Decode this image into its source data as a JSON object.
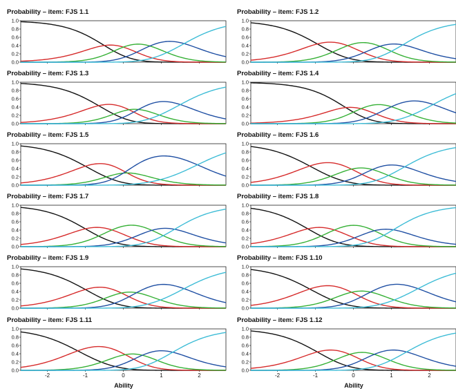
{
  "chart_data": {
    "type": "line",
    "xlabel": "Ability",
    "xlim": [
      -2.7,
      2.7
    ],
    "ylim": [
      0,
      1
    ],
    "xticks": [
      "-2",
      "-1",
      "0",
      "1",
      "2"
    ],
    "yticks": [
      "0.0",
      "0.2",
      "0.4",
      "0.6",
      "0.8",
      "1.0"
    ],
    "category_colors": [
      "#111111",
      "#d62b2b",
      "#35b035",
      "#1f4fa3",
      "#3dbcd6"
    ],
    "panels": [
      {
        "title": "Probability – item: FJS 1.1",
        "thresholds": [
          -0.5,
          0.0,
          0.7,
          1.6
        ]
      },
      {
        "title": "Probability – item: FJS 1.2",
        "thresholds": [
          -0.95,
          -0.15,
          0.7,
          1.3
        ]
      },
      {
        "title": "Probability – item: FJS 1.3",
        "thresholds": [
          -0.65,
          0.15,
          0.4,
          1.5
        ]
      },
      {
        "title": "Probability – item: FJS 1.4",
        "thresholds": [
          -0.2,
          0.2,
          1.0,
          2.1
        ]
      },
      {
        "title": "Probability – item: FJS 1.5",
        "thresholds": [
          -1.0,
          0.1,
          0.0,
          1.95
        ]
      },
      {
        "title": "Probability – item: FJS 1.6",
        "thresholds": [
          -1.15,
          -0.05,
          0.5,
          1.35
        ]
      },
      {
        "title": "Probability – item: FJS 1.7",
        "thresholds": [
          -1.0,
          -0.3,
          0.75,
          1.35
        ]
      },
      {
        "title": "Probability – item: FJS 1.8",
        "thresholds": [
          -1.2,
          -0.5,
          0.55,
          1.05
        ]
      },
      {
        "title": "Probability – item: FJS 1.9",
        "thresholds": [
          -1.0,
          -0.05,
          0.35,
          1.6
        ]
      },
      {
        "title": "Probability – item: FJS 1.10",
        "thresholds": [
          -1.15,
          -0.05,
          0.45,
          1.7
        ]
      },
      {
        "title": "Probability – item: FJS 1.11",
        "thresholds": [
          -1.2,
          0.05,
          0.5,
          1.3
        ]
      },
      {
        "title": "Probability – item: FJS 1.12",
        "thresholds": [
          -0.95,
          -0.1,
          0.55,
          1.4
        ]
      }
    ]
  }
}
